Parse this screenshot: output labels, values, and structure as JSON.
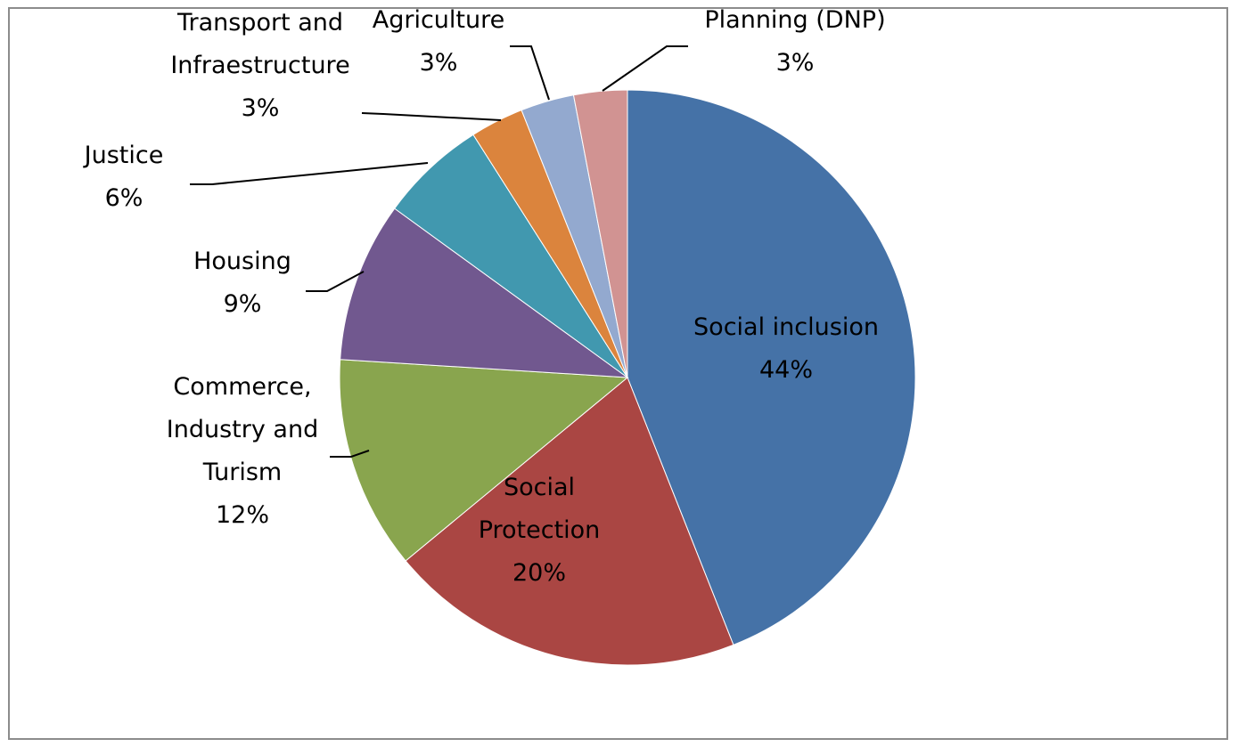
{
  "chart_data": {
    "type": "pie",
    "title": "",
    "slices": [
      {
        "label": [
          "Social inclusion"
        ],
        "value": 44,
        "value_label": "44%",
        "color": "#4572a7"
      },
      {
        "label": [
          "Social",
          "Protection"
        ],
        "value": 20,
        "value_label": "20%",
        "color": "#aa4643"
      },
      {
        "label": [
          "Commerce,",
          "Industry and",
          "Turism"
        ],
        "value": 12,
        "value_label": "12%",
        "color": "#89a54e"
      },
      {
        "label": [
          "Housing"
        ],
        "value": 9,
        "value_label": "9%",
        "color": "#71588f"
      },
      {
        "label": [
          "Justice"
        ],
        "value": 6,
        "value_label": "6%",
        "color": "#4198af"
      },
      {
        "label": [
          "Transport and",
          "Infraestructure"
        ],
        "value": 3,
        "value_label": "3%",
        "color": "#db843d"
      },
      {
        "label": [
          "Agriculture"
        ],
        "value": 3,
        "value_label": "3%",
        "color": "#93a9cf"
      },
      {
        "label": [
          "Planning (DNP)"
        ],
        "value": 3,
        "value_label": "3%",
        "color": "#d19392"
      }
    ],
    "start_angle_deg": 0,
    "direction": "clockwise",
    "legend": "none",
    "data_labels": "category name and percentage"
  }
}
